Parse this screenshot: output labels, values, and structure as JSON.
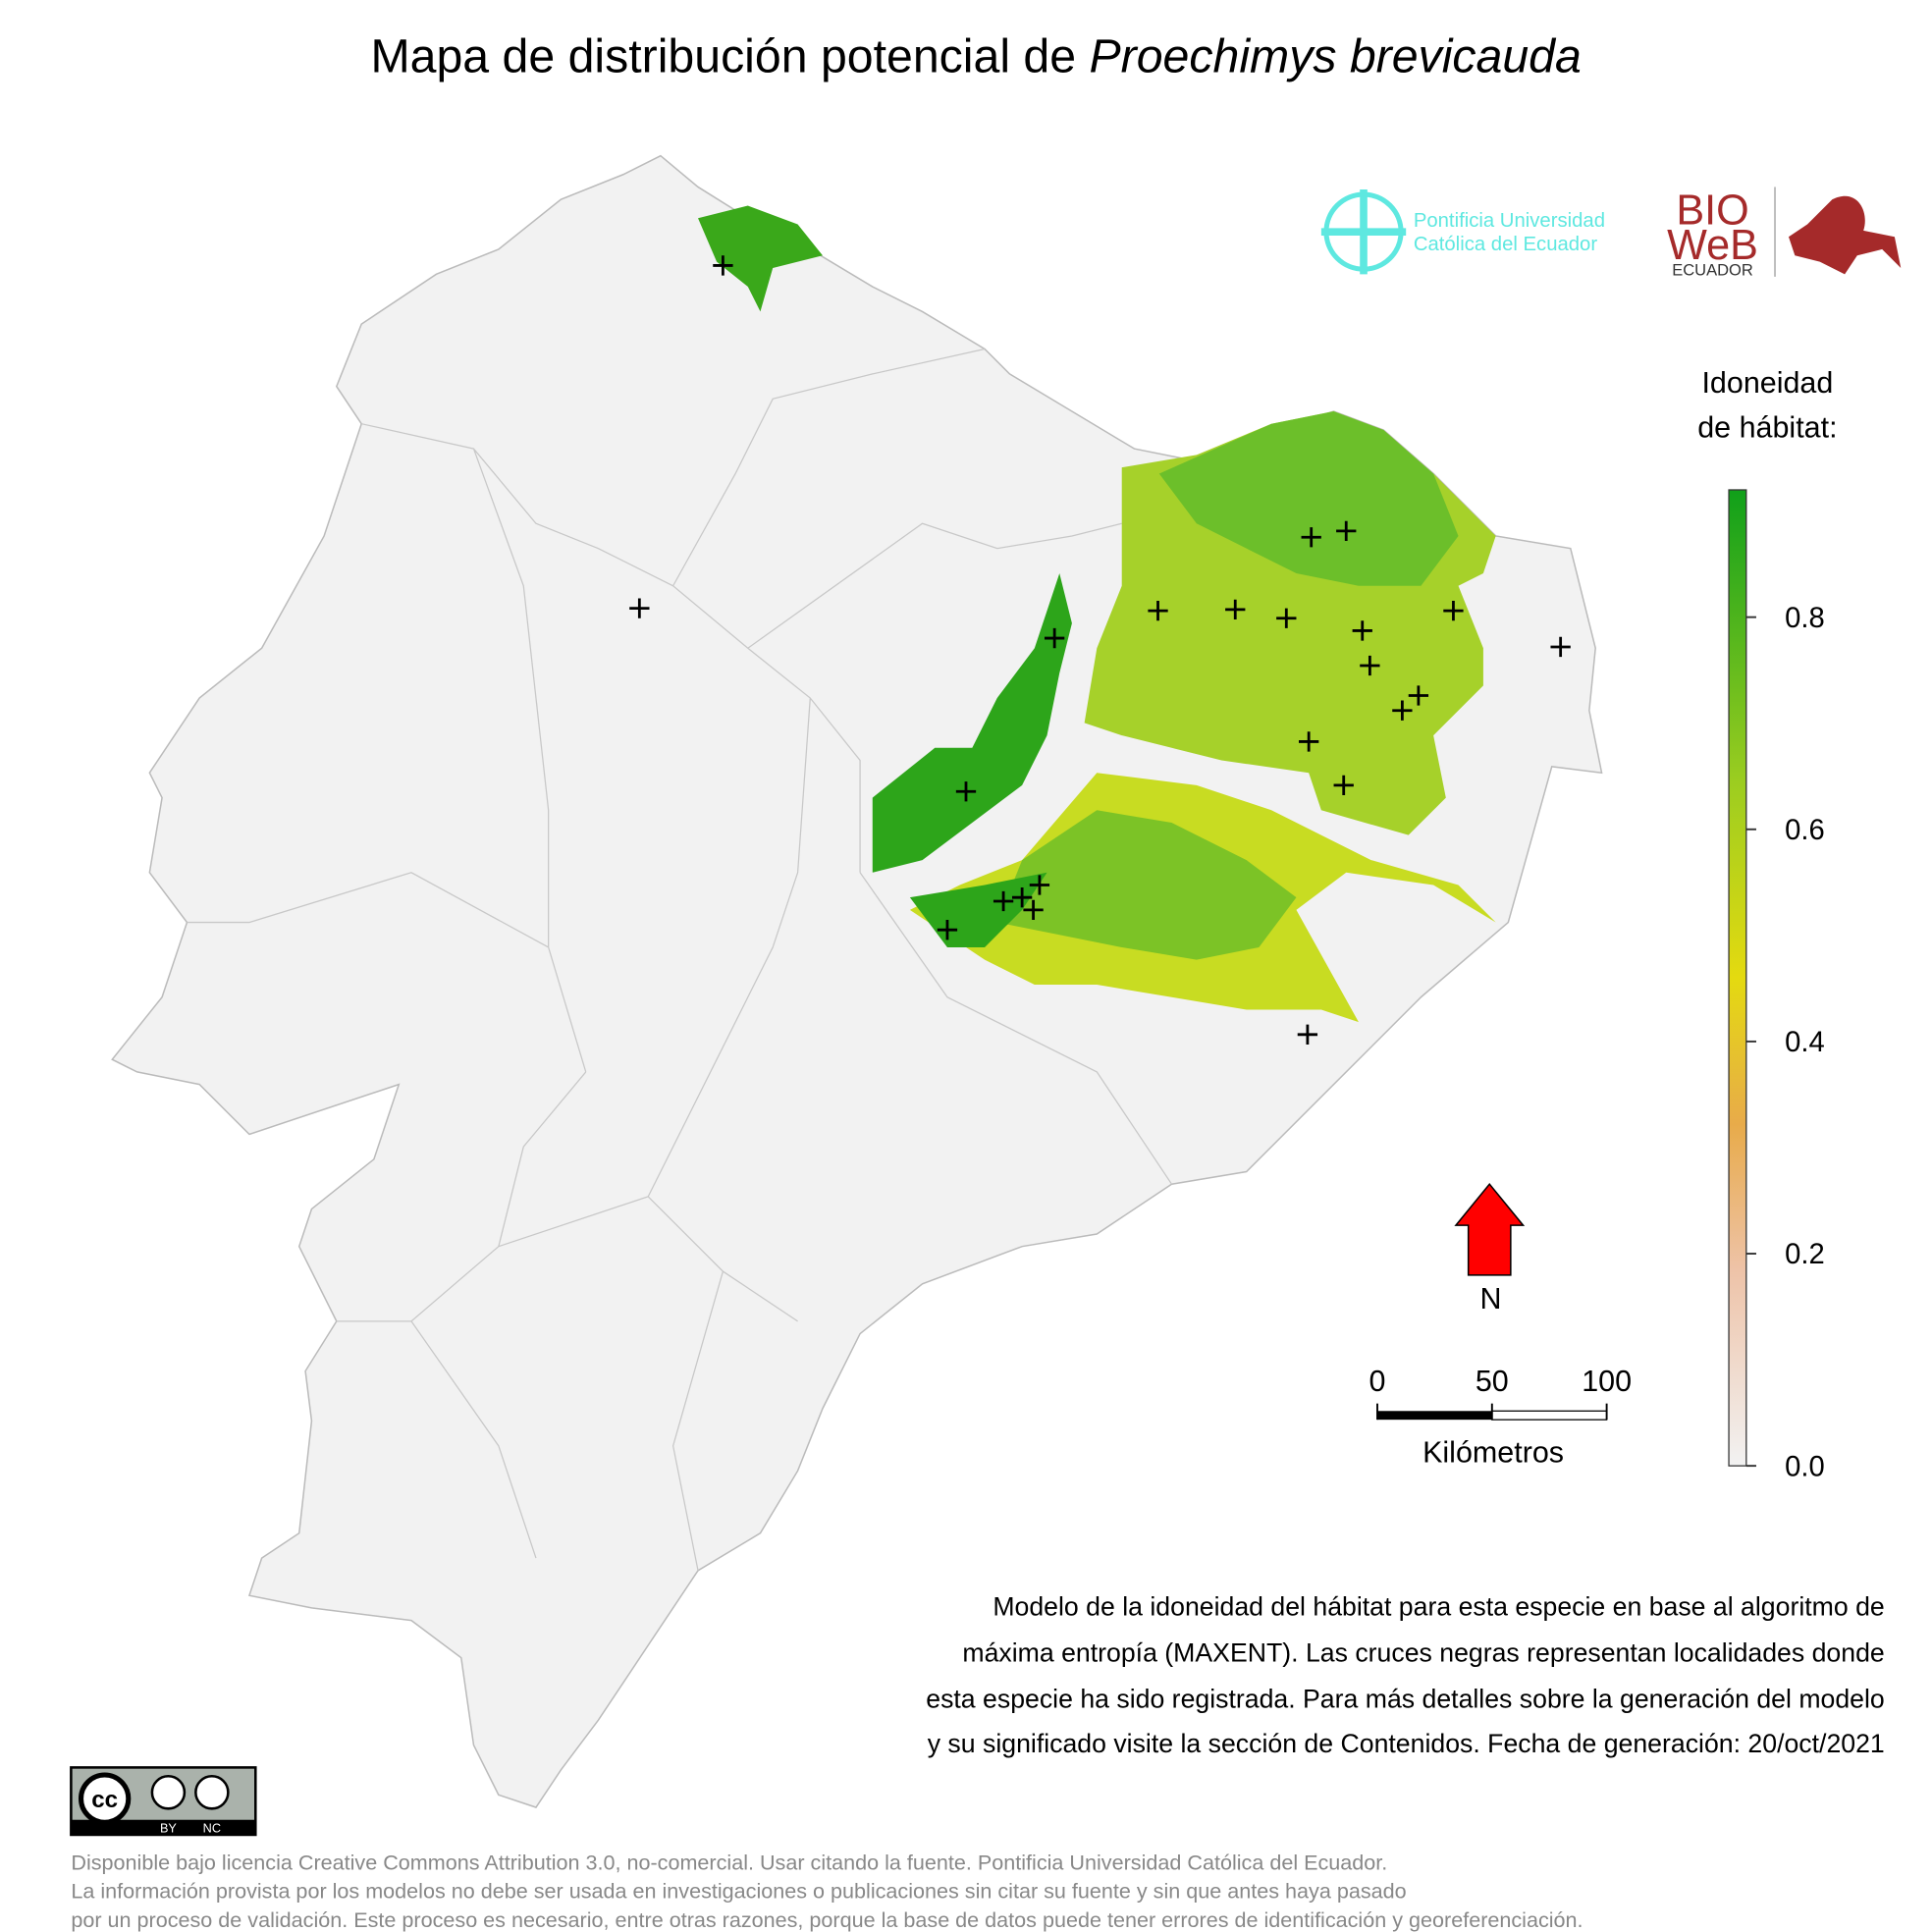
{
  "title": {
    "prefix": "Mapa de distribución potencial de",
    "species": "Proechimys brevicauda"
  },
  "logos": {
    "puce_line1": "Pontificia Universidad",
    "puce_line2": "Católica del Ecuador",
    "bioweb_1": "BIO",
    "bioweb_2": "WeB",
    "bioweb_3": "ECUADOR"
  },
  "chart_data": {
    "type": "colorbar",
    "title_line1": "Idoneidad",
    "title_line2": "de hábitat:",
    "ylim": [
      0,
      0.92
    ],
    "yticks": [
      {
        "value": 0,
        "label": "0.0"
      },
      0.2,
      0.4,
      0.6,
      0.8
    ]
  },
  "north": {
    "label": "N"
  },
  "scale_bar": {
    "xlim": [
      0,
      100
    ],
    "xticks": [
      0,
      50,
      100
    ],
    "unit": "Kilómetros"
  },
  "description": [
    "Modelo de la idoneidad del hábitat para esta especie en base al algoritmo de",
    "máxima entropía (MAXENT). Las cruces negras representan localidades donde",
    "esta especie ha sido registrada. Para más detalles sobre la generación del modelo",
    "y su significado visite la sección de Contenidos. Fecha de generación: 20/oct/2021"
  ],
  "license_badge": {
    "cc": "cc",
    "by": "BY",
    "nc": "NC"
  },
  "license": [
    "Disponible bajo licencia Creative Commons Attribution 3.0, no-comercial. Usar citando la fuente. Pontificia Universidad Católica del Ecuador.",
    "La información provista por los modelos no debe ser usada en investigaciones o publicaciones sin citar su fuente y sin que antes haya pasado",
    "por un proceso de validación. Este proceso es necesario, entre otras razones, porque la base de datos puede tener errores de identificación y georeferenciación."
  ]
}
